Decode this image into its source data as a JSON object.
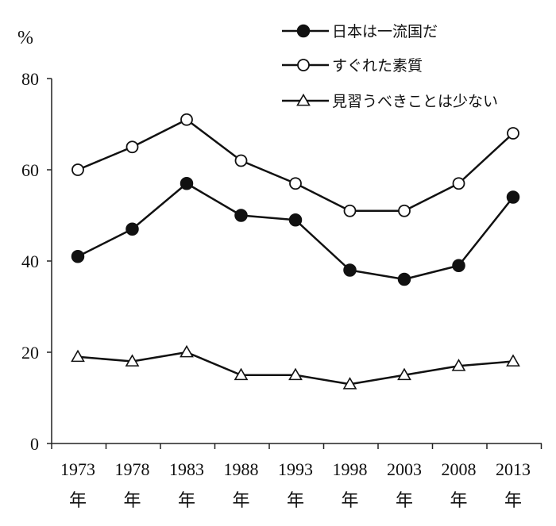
{
  "chart_data": {
    "type": "line",
    "ylabel": "%",
    "ylim": [
      0,
      80
    ],
    "yticks": [
      0,
      20,
      40,
      60,
      80
    ],
    "categories": [
      "1973",
      "1978",
      "1983",
      "1988",
      "1993",
      "1998",
      "2003",
      "2008",
      "2013"
    ],
    "category_suffix": "年",
    "grid": false,
    "legend_position": "top-right",
    "series": [
      {
        "name": "日本は一流国だ",
        "marker": "filled-circle",
        "values": [
          41,
          47,
          57,
          50,
          49,
          38,
          36,
          39,
          54
        ]
      },
      {
        "name": "すぐれた素質",
        "marker": "open-circle",
        "values": [
          60,
          65,
          71,
          62,
          57,
          51,
          51,
          57,
          68
        ]
      },
      {
        "name": "見習うべきことは少ない",
        "marker": "open-triangle",
        "values": [
          19,
          18,
          20,
          15,
          15,
          13,
          15,
          17,
          18
        ]
      }
    ],
    "colors": {
      "line": "#111111",
      "marker_fill_solid": "#111111",
      "marker_fill_open": "#ffffff"
    }
  }
}
